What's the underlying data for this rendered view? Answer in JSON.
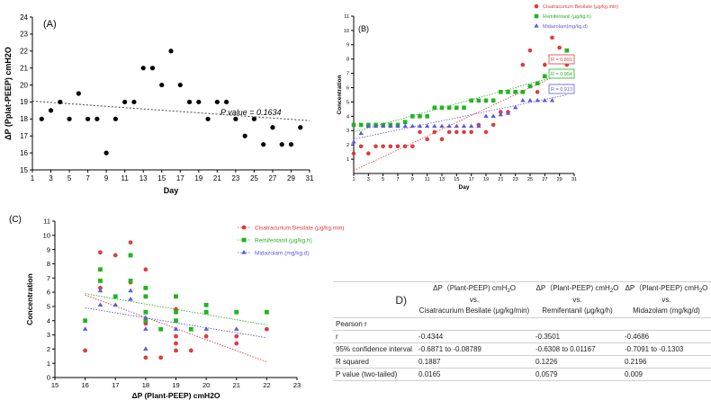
{
  "panelA": {
    "chart_data": {
      "type": "scatter",
      "label": "(A)",
      "xlabel": "Day",
      "ylabel": "ΔP (Pplat-PEEP) cmH2O",
      "xlim": [
        1,
        31
      ],
      "ylim": [
        15,
        24
      ],
      "xticks": [
        1,
        3,
        5,
        7,
        9,
        11,
        13,
        15,
        17,
        19,
        21,
        23,
        25,
        27,
        29,
        31
      ],
      "yticks": [
        15,
        16,
        17,
        18,
        19,
        20,
        21,
        22,
        23,
        24
      ],
      "points": [
        [
          2,
          18
        ],
        [
          3,
          18.5
        ],
        [
          4,
          19
        ],
        [
          5,
          18
        ],
        [
          6,
          19.5
        ],
        [
          7,
          18
        ],
        [
          8,
          18
        ],
        [
          9,
          16
        ],
        [
          10,
          18
        ],
        [
          11,
          19
        ],
        [
          12,
          19
        ],
        [
          13,
          21
        ],
        [
          14,
          21
        ],
        [
          15,
          20
        ],
        [
          16,
          22
        ],
        [
          17,
          20
        ],
        [
          18,
          19
        ],
        [
          19,
          19
        ],
        [
          20,
          18
        ],
        [
          21,
          19
        ],
        [
          22,
          19
        ],
        [
          23,
          18
        ],
        [
          24,
          17
        ],
        [
          25,
          18
        ],
        [
          26,
          16.5
        ],
        [
          27,
          17.5
        ],
        [
          28,
          16.5
        ],
        [
          29,
          16.5
        ],
        [
          30,
          17.5
        ]
      ],
      "trend": [
        [
          1,
          19.05
        ],
        [
          31,
          17.9
        ]
      ],
      "annotation": "P value = 0.1634"
    }
  },
  "panelB": {
    "chart_data": {
      "type": "scatter",
      "label": "(B)",
      "xlabel": "Day",
      "ylabel": "Concentration",
      "xlim": [
        1,
        31
      ],
      "ylim": [
        0,
        11
      ],
      "xticks": [
        1,
        3,
        5,
        7,
        9,
        11,
        13,
        15,
        17,
        19,
        21,
        23,
        25,
        27,
        29,
        31
      ],
      "yticks": [
        1,
        2,
        3,
        4,
        5,
        6,
        7,
        8,
        9,
        10,
        11
      ],
      "series": [
        {
          "name": "Cisatracurium Besilate  (μg/kg.min)",
          "color": "#e03c3c",
          "marker": "circle",
          "x": [
            1,
            2,
            3,
            4,
            5,
            6,
            7,
            8,
            9,
            10,
            11,
            12,
            13,
            14,
            15,
            16,
            17,
            18,
            19,
            20,
            21,
            22,
            23,
            24,
            25,
            26,
            27,
            28,
            29,
            30
          ],
          "y": [
            1.4,
            1.9,
            1.4,
            1.9,
            1.9,
            1.9,
            1.9,
            1.9,
            1.9,
            2.9,
            2.4,
            2.9,
            2.4,
            2.9,
            2.9,
            2.9,
            2.9,
            3.4,
            2.9,
            3.4,
            4.3,
            4.3,
            5.7,
            7.6,
            8.6,
            5.7,
            7.6,
            9.5,
            8.8,
            7.6
          ],
          "trend": [
            [
              1,
              0.2
            ],
            [
              30,
              7.2
            ]
          ],
          "r_label": "R = 0.891"
        },
        {
          "name": "Remifentanil (μg/kg.h)",
          "color": "#22b322",
          "marker": "square",
          "x": [
            1,
            2,
            3,
            4,
            5,
            6,
            7,
            8,
            9,
            10,
            11,
            12,
            13,
            14,
            15,
            16,
            17,
            18,
            19,
            20,
            21,
            22,
            23,
            24,
            25,
            26,
            27,
            28,
            29,
            30
          ],
          "y": [
            3.4,
            3.4,
            3.4,
            3.4,
            3.4,
            3.4,
            3.4,
            3.6,
            4.0,
            4.0,
            4.0,
            4.6,
            4.6,
            4.6,
            4.6,
            4.6,
            5.1,
            5.1,
            5.1,
            5.1,
            5.7,
            5.7,
            5.7,
            5.7,
            6.1,
            6.3,
            6.8,
            6.8,
            7.8,
            8.6
          ],
          "trend": [
            [
              1,
              2.9
            ],
            [
              30,
              7.0
            ]
          ],
          "r_label": "R = 0.954"
        },
        {
          "name": "Midazolam(mg/kg.d)",
          "color": "#5a5adc",
          "marker": "triangle",
          "x": [
            1,
            2,
            3,
            4,
            5,
            6,
            7,
            8,
            9,
            10,
            11,
            12,
            13,
            14,
            15,
            16,
            17,
            18,
            19,
            20,
            21,
            22,
            23,
            24,
            25,
            26,
            27,
            28,
            29,
            30
          ],
          "y": [
            2.2,
            2.8,
            3.3,
            3.3,
            3.3,
            3.3,
            3.3,
            3.3,
            3.3,
            3.3,
            3.3,
            3.3,
            3.3,
            3.3,
            3.3,
            3.3,
            3.3,
            3.3,
            4.0,
            4.0,
            4.1,
            4.2,
            4.6,
            5.1,
            5.1,
            5.1,
            5.1,
            5.1,
            6.1,
            6.1
          ],
          "trend": [
            [
              1,
              2.4
            ],
            [
              30,
              5.5
            ]
          ],
          "r_label": "R = 0.913"
        }
      ]
    }
  },
  "panelC": {
    "chart_data": {
      "type": "scatter",
      "label": "(C)",
      "xlabel": "ΔP (Plant-PEEP) cmH2O",
      "ylabel": "Concentration",
      "xlim": [
        15,
        23
      ],
      "ylim": [
        0,
        11
      ],
      "xticks": [
        15,
        16,
        17,
        18,
        19,
        20,
        21,
        22,
        23
      ],
      "yticks": [
        0,
        1,
        2,
        3,
        4,
        5,
        6,
        7,
        8,
        9,
        10,
        11
      ],
      "series": [
        {
          "name": "Cisatracurium Besilate  (μg/kg.min)",
          "color": "#e03c3c",
          "marker": "circle",
          "points": [
            [
              16,
              1.9
            ],
            [
              16.5,
              8.8
            ],
            [
              16.5,
              6.3
            ],
            [
              17,
              8.6
            ],
            [
              17.5,
              9.5
            ],
            [
              17.5,
              6.7
            ],
            [
              18,
              7.6
            ],
            [
              18,
              5.7
            ],
            [
              18,
              3.8
            ],
            [
              18,
              1.4
            ],
            [
              18.5,
              1.4
            ],
            [
              19,
              5.7
            ],
            [
              19,
              4.8
            ],
            [
              19,
              2.9
            ],
            [
              19,
              2.4
            ],
            [
              19,
              1.9
            ],
            [
              19.5,
              1.9
            ],
            [
              20,
              2.9
            ],
            [
              21,
              2.9
            ],
            [
              21,
              2.4
            ],
            [
              22,
              3.4
            ]
          ],
          "trend": [
            [
              16,
              5.8
            ],
            [
              22,
              1.1
            ]
          ]
        },
        {
          "name": "Remifentanil  (μg/kg.h)",
          "color": "#22b322",
          "marker": "square",
          "points": [
            [
              16,
              4.0
            ],
            [
              16.5,
              7.6
            ],
            [
              16.5,
              6.8
            ],
            [
              17,
              5.7
            ],
            [
              17.5,
              8.6
            ],
            [
              17.5,
              6.8
            ],
            [
              18,
              6.3
            ],
            [
              18,
              5.7
            ],
            [
              18,
              4.6
            ],
            [
              18,
              4.0
            ],
            [
              18.5,
              3.4
            ],
            [
              19,
              5.7
            ],
            [
              19,
              4.6
            ],
            [
              19,
              4.0
            ],
            [
              19.5,
              3.4
            ],
            [
              20,
              5.1
            ],
            [
              20,
              4.6
            ],
            [
              21,
              4.6
            ],
            [
              22,
              4.6
            ]
          ],
          "trend": [
            [
              16,
              5.9
            ],
            [
              22,
              3.7
            ]
          ]
        },
        {
          "name": "Midazolam  (mg/kg.d)",
          "color": "#5a5adc",
          "marker": "triangle",
          "points": [
            [
              16,
              3.4
            ],
            [
              16.5,
              6.1
            ],
            [
              16.5,
              5.1
            ],
            [
              17,
              5.1
            ],
            [
              17.5,
              6.1
            ],
            [
              17.5,
              5.5
            ],
            [
              18,
              4.2
            ],
            [
              18,
              3.4
            ],
            [
              18,
              2.0
            ],
            [
              19,
              3.4
            ],
            [
              20,
              3.4
            ],
            [
              21,
              3.4
            ]
          ],
          "trend": [
            [
              16,
              4.9
            ],
            [
              22,
              2.8
            ]
          ]
        }
      ]
    }
  },
  "tableD": {
    "label": "D)",
    "headers": [
      {
        "l1": "ΔP（Plant-PEEP) cmH",
        "sub": "2",
        "l1b": "O",
        "l2": "vs.",
        "l3": "Cisatracurium Besilate (μg/kg/min)"
      },
      {
        "l1": "ΔP（Plant-PEEP) cmH",
        "sub": "2",
        "l1b": "O",
        "l2": "vs.",
        "l3": "Remifentanil (μg/kg/h)"
      },
      {
        "l1": "ΔP（Plant-PEEP) cmH",
        "sub": "2",
        "l1b": "O",
        "l2": "vs.",
        "l3": "Midazolam (mg/kg/d)"
      }
    ],
    "rows": [
      {
        "label": "Pearson r",
        "values": [
          "",
          "",
          ""
        ]
      },
      {
        "label": "r",
        "values": [
          "-0.4344",
          "-0.3501",
          "-0.4686"
        ]
      },
      {
        "label": "95% confidence interval",
        "values": [
          "-0.6871 to -0.08789",
          "-0.6308 to 0.01167",
          "-0.7091 to -0.1303"
        ]
      },
      {
        "label": "R squared",
        "values": [
          "0.1887",
          "0.1226",
          "0.2196"
        ]
      },
      {
        "label": "P value (two-tailed)",
        "values": [
          "0.0165",
          "0.0579",
          "0.009"
        ]
      }
    ]
  }
}
